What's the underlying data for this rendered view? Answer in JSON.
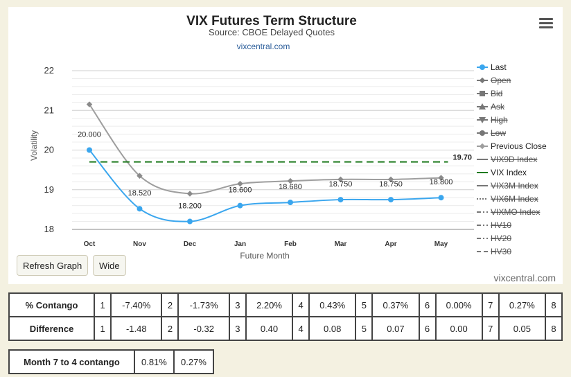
{
  "chart_data": {
    "type": "line",
    "title": "VIX Futures Term Structure",
    "subtitle": "Source: CBOE Delayed Quotes",
    "source_link": "vixcentral.com",
    "xlabel": "Future Month",
    "ylabel": "Volatility",
    "categories": [
      "Oct",
      "Nov",
      "Dec",
      "Jan",
      "Feb",
      "Mar",
      "Apr",
      "May"
    ],
    "ylim": [
      18,
      22
    ],
    "yticks": [
      18,
      19,
      20,
      21,
      22
    ],
    "grid": true,
    "legend_position": "right",
    "series": [
      {
        "name": "Last",
        "values": [
          20.0,
          18.52,
          18.2,
          18.6,
          18.68,
          18.75,
          18.75,
          18.8
        ],
        "labels": [
          "20.000",
          "18.520",
          "18.200",
          "18.600",
          "18.680",
          "18.750",
          "18.750",
          "18.800"
        ],
        "color": "#3aa6ee"
      },
      {
        "name": "Previous Close",
        "values": [
          21.15,
          19.35,
          18.9,
          19.15,
          19.22,
          19.26,
          19.26,
          19.3
        ],
        "color": "#9e9e9e"
      },
      {
        "name": "VIX Index",
        "constant": 19.7,
        "label": "19.70",
        "color": "#1f7a1f"
      }
    ],
    "legend": [
      {
        "name": "Last",
        "marker": "circle",
        "hidden": false
      },
      {
        "name": "Open",
        "marker": "diamond",
        "hidden": true
      },
      {
        "name": "Bid",
        "marker": "square",
        "hidden": true
      },
      {
        "name": "Ask",
        "marker": "triangle",
        "hidden": true
      },
      {
        "name": "High",
        "marker": "triangle-down",
        "hidden": true
      },
      {
        "name": "Low",
        "marker": "circle",
        "hidden": true
      },
      {
        "name": "Previous Close",
        "marker": "diamond",
        "hidden": false
      },
      {
        "name": "VIX9D Index",
        "marker": "line",
        "hidden": true
      },
      {
        "name": "VIX Index",
        "marker": "line-green",
        "hidden": false
      },
      {
        "name": "VIX3M Index",
        "marker": "line",
        "hidden": true
      },
      {
        "name": "VIX6M Index",
        "marker": "dotted",
        "hidden": true
      },
      {
        "name": "VIXMO Index",
        "marker": "dashdot",
        "hidden": true
      },
      {
        "name": "HV10",
        "marker": "dashdot",
        "hidden": true
      },
      {
        "name": "HV20",
        "marker": "dashdot",
        "hidden": true
      },
      {
        "name": "HV30",
        "marker": "dash",
        "hidden": true
      }
    ]
  },
  "controls": {
    "refresh_label": "Refresh Graph",
    "wide_label": "Wide",
    "watermark": "vixcentral.com"
  },
  "contango_table": {
    "contango_label": "% Contango",
    "difference_label": "Difference",
    "indices": [
      "1",
      "2",
      "3",
      "4",
      "5",
      "6",
      "7",
      "8"
    ],
    "contango": [
      "-7.40%",
      "-1.73%",
      "2.20%",
      "0.43%",
      "0.37%",
      "0.00%",
      "0.27%"
    ],
    "difference": [
      "-1.48",
      "-0.32",
      "0.40",
      "0.08",
      "0.07",
      "0.00",
      "0.05"
    ]
  },
  "month74": {
    "label": "Month 7 to 4 contango",
    "value1": "0.81%",
    "value2": "0.27%"
  }
}
